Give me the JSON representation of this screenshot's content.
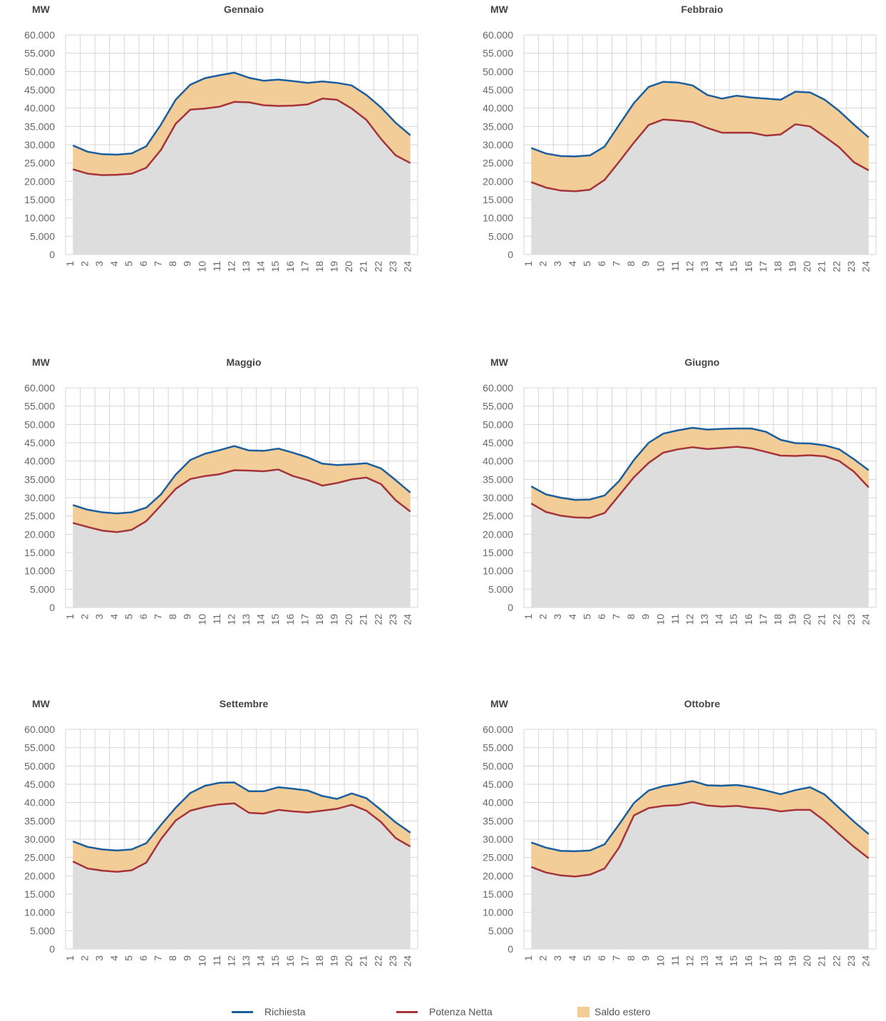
{
  "colors": {
    "richiesta": "#1a5e9e",
    "potenza": "#a5333a",
    "saldo": "#f2cd98",
    "base": "#dddddd",
    "grid": "#d6d6d6",
    "tick": "#666666"
  },
  "legend": {
    "richiesta": "Richiesta",
    "potenza": "Potenza Netta",
    "saldo": "Saldo estero"
  },
  "chart_data": [
    {
      "type": "area",
      "title": "Gennaio",
      "ylabel": "MW",
      "ylim": [
        0,
        60000
      ],
      "yticks": [
        "0",
        "5.000",
        "10.000",
        "15.000",
        "20.000",
        "25.000",
        "30.000",
        "35.000",
        "40.000",
        "45.000",
        "50.000",
        "55.000",
        "60.000"
      ],
      "categories": [
        "1",
        "2",
        "3",
        "4",
        "5",
        "6",
        "7",
        "8",
        "9",
        "10",
        "11",
        "12",
        "13",
        "14",
        "15",
        "16",
        "17",
        "18",
        "19",
        "20",
        "21",
        "22",
        "23",
        "24"
      ],
      "series": [
        {
          "name": "Richiesta",
          "values": [
            29800,
            28100,
            27400,
            27300,
            27600,
            29600,
            35500,
            42300,
            46400,
            48200,
            49000,
            49700,
            48300,
            47500,
            47800,
            47400,
            46900,
            47300,
            46900,
            46200,
            43600,
            40200,
            36000,
            32600
          ]
        },
        {
          "name": "Potenza Netta",
          "values": [
            23300,
            22100,
            21700,
            21800,
            22100,
            23700,
            28600,
            35700,
            39600,
            39900,
            40400,
            41700,
            41600,
            40800,
            40600,
            40700,
            41000,
            42600,
            42300,
            39900,
            36800,
            31600,
            27100,
            25000
          ]
        }
      ]
    },
    {
      "type": "area",
      "title": "Febbraio",
      "ylabel": "MW",
      "ylim": [
        0,
        60000
      ],
      "yticks": [
        "0",
        "5.000",
        "10.000",
        "15.000",
        "20.000",
        "25.000",
        "30.000",
        "35.000",
        "40.000",
        "45.000",
        "50.000",
        "55.000",
        "60.000"
      ],
      "categories": [
        "1",
        "2",
        "3",
        "4",
        "5",
        "6",
        "7",
        "8",
        "9",
        "10",
        "11",
        "12",
        "13",
        "14",
        "15",
        "16",
        "17",
        "18",
        "19",
        "20",
        "21",
        "22",
        "23",
        "24"
      ],
      "series": [
        {
          "name": "Richiesta",
          "values": [
            29100,
            27600,
            26900,
            26800,
            27100,
            29500,
            35500,
            41400,
            45800,
            47200,
            47000,
            46200,
            43600,
            42600,
            43400,
            42900,
            42600,
            42300,
            44500,
            44300,
            42300,
            39200,
            35500,
            32000
          ]
        },
        {
          "name": "Potenza Netta",
          "values": [
            19800,
            18300,
            17500,
            17300,
            17700,
            20400,
            25400,
            30600,
            35400,
            36900,
            36600,
            36200,
            34600,
            33300,
            33300,
            33300,
            32500,
            32800,
            35600,
            35000,
            32200,
            29300,
            25200,
            23000
          ]
        }
      ]
    },
    {
      "type": "area",
      "title": "Maggio",
      "ylabel": "MW",
      "ylim": [
        0,
        60000
      ],
      "yticks": [
        "0",
        "5.000",
        "10.000",
        "15.000",
        "20.000",
        "25.000",
        "30.000",
        "35.000",
        "40.000",
        "45.000",
        "50.000",
        "55.000",
        "60.000"
      ],
      "categories": [
        "1",
        "2",
        "3",
        "4",
        "5",
        "6",
        "7",
        "8",
        "9",
        "10",
        "11",
        "12",
        "13",
        "14",
        "15",
        "16",
        "17",
        "18",
        "19",
        "20",
        "21",
        "22",
        "23",
        "24"
      ],
      "series": [
        {
          "name": "Richiesta",
          "values": [
            28000,
            26700,
            26000,
            25700,
            26000,
            27300,
            30900,
            36300,
            40300,
            42000,
            43000,
            44100,
            42900,
            42800,
            43400,
            42300,
            41000,
            39300,
            38900,
            39100,
            39400,
            38000,
            34800,
            31400
          ]
        },
        {
          "name": "Potenza Netta",
          "values": [
            23100,
            22000,
            21000,
            20600,
            21200,
            23600,
            27900,
            32400,
            35100,
            35900,
            36400,
            37500,
            37400,
            37200,
            37700,
            35900,
            34800,
            33300,
            34000,
            35000,
            35500,
            33700,
            29300,
            26200
          ]
        }
      ]
    },
    {
      "type": "area",
      "title": "Giugno",
      "ylabel": "MW",
      "ylim": [
        0,
        60000
      ],
      "yticks": [
        "0",
        "5.000",
        "10.000",
        "15.000",
        "20.000",
        "25.000",
        "30.000",
        "35.000",
        "40.000",
        "45.000",
        "50.000",
        "55.000",
        "60.000"
      ],
      "categories": [
        "1",
        "2",
        "3",
        "4",
        "5",
        "6",
        "7",
        "8",
        "9",
        "10",
        "11",
        "12",
        "13",
        "14",
        "15",
        "16",
        "17",
        "18",
        "19",
        "20",
        "21",
        "22",
        "23",
        "24"
      ],
      "series": [
        {
          "name": "Richiesta",
          "values": [
            33100,
            30900,
            30000,
            29400,
            29500,
            30600,
            34600,
            40300,
            45000,
            47500,
            48400,
            49100,
            48600,
            48800,
            48900,
            48900,
            48000,
            45800,
            44900,
            44800,
            44300,
            43200,
            40500,
            37500
          ]
        },
        {
          "name": "Potenza Netta",
          "values": [
            28400,
            26100,
            25100,
            24600,
            24500,
            25800,
            30700,
            35600,
            39500,
            42300,
            43200,
            43800,
            43300,
            43600,
            43900,
            43500,
            42500,
            41500,
            41400,
            41600,
            41300,
            40000,
            37100,
            32800
          ]
        }
      ]
    },
    {
      "type": "area",
      "title": "Settembre",
      "ylabel": "MW",
      "ylim": [
        0,
        60000
      ],
      "yticks": [
        "0",
        "5.000",
        "10.000",
        "15.000",
        "20.000",
        "25.000",
        "30.000",
        "35.000",
        "40.000",
        "45.000",
        "50.000",
        "55.000",
        "60.000"
      ],
      "categories": [
        "1",
        "2",
        "3",
        "4",
        "5",
        "6",
        "7",
        "8",
        "9",
        "10",
        "11",
        "12",
        "13",
        "14",
        "15",
        "16",
        "17",
        "18",
        "19",
        "20",
        "21",
        "22",
        "23",
        "24"
      ],
      "series": [
        {
          "name": "Richiesta",
          "values": [
            29400,
            27900,
            27200,
            26900,
            27200,
            28900,
            33900,
            38600,
            42600,
            44600,
            45400,
            45500,
            43100,
            43100,
            44200,
            43800,
            43300,
            41800,
            41000,
            42500,
            41200,
            38000,
            34600,
            31800
          ]
        },
        {
          "name": "Potenza Netta",
          "values": [
            23900,
            22000,
            21400,
            21100,
            21500,
            23600,
            30000,
            35100,
            37800,
            38800,
            39500,
            39800,
            37200,
            37000,
            38000,
            37600,
            37300,
            37800,
            38300,
            39400,
            37800,
            34700,
            30300,
            28000
          ]
        }
      ]
    },
    {
      "type": "area",
      "title": "Ottobre",
      "ylabel": "MW",
      "ylim": [
        0,
        60000
      ],
      "yticks": [
        "0",
        "5.000",
        "10.000",
        "15.000",
        "20.000",
        "25.000",
        "30.000",
        "35.000",
        "40.000",
        "45.000",
        "50.000",
        "55.000",
        "60.000"
      ],
      "categories": [
        "1",
        "2",
        "3",
        "4",
        "5",
        "6",
        "7",
        "8",
        "9",
        "10",
        "11",
        "12",
        "13",
        "14",
        "15",
        "16",
        "17",
        "18",
        "19",
        "20",
        "21",
        "22",
        "23",
        "24"
      ],
      "series": [
        {
          "name": "Richiesta",
          "values": [
            29100,
            27700,
            26800,
            26700,
            26900,
            28600,
            34100,
            39900,
            43300,
            44500,
            45100,
            45900,
            44700,
            44600,
            44800,
            44200,
            43300,
            42300,
            43400,
            44200,
            42200,
            38500,
            34800,
            31400
          ]
        },
        {
          "name": "Potenza Netta",
          "values": [
            22400,
            20900,
            20100,
            19800,
            20300,
            22000,
            27800,
            36500,
            38500,
            39100,
            39300,
            40100,
            39200,
            38900,
            39100,
            38600,
            38300,
            37600,
            38000,
            38000,
            35000,
            31400,
            27900,
            24800
          ]
        }
      ]
    }
  ]
}
